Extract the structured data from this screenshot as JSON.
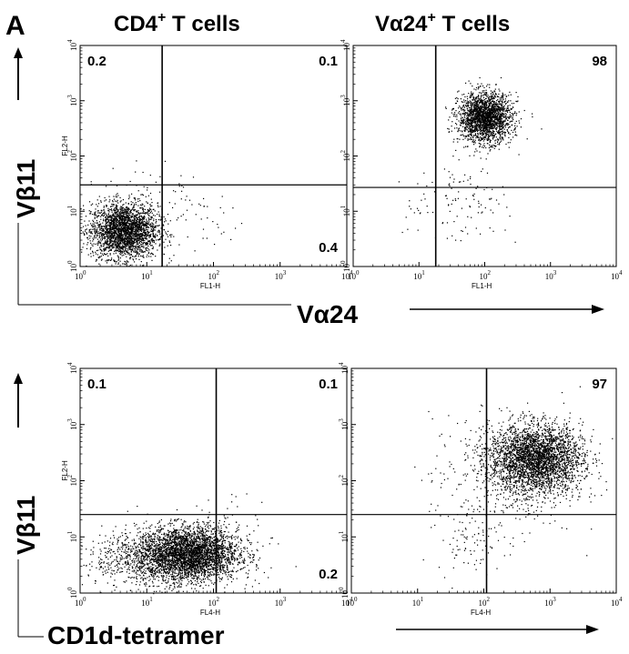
{
  "figure": {
    "panel_letter": "A",
    "col_titles": [
      {
        "prefix": "CD4",
        "sup": "+",
        "suffix": " T cells"
      },
      {
        "prefix": "Vα24",
        "sup": "+",
        "suffix": " T cells"
      }
    ],
    "row_ylabels": [
      "Vβ11",
      "Vβ11"
    ],
    "row_xlabels": [
      "Vα24",
      "CD1d-tetramer"
    ]
  },
  "chart_data": [
    {
      "type": "scatter",
      "row": 0,
      "col": 0,
      "xlabel": "FL1-H",
      "ylabel": "FL2-H",
      "xscale": "log",
      "yscale": "log",
      "xlim": [
        1,
        10000
      ],
      "ylim": [
        1,
        10000
      ],
      "gates": {
        "x": 17,
        "y": 30
      },
      "quadrant_labels": {
        "ul": "0.2",
        "ur": "0.1",
        "lr": "0.4",
        "ll": ""
      },
      "clusters": [
        {
          "center": [
            4.5,
            4.5
          ],
          "spread": [
            0.25,
            0.25
          ],
          "n": 2600,
          "density": "dense"
        },
        {
          "center": [
            10,
            20
          ],
          "spread": [
            0.35,
            0.35
          ],
          "n": 55,
          "density": "sparse"
        },
        {
          "center": [
            60,
            8
          ],
          "spread": [
            0.4,
            0.35
          ],
          "n": 45,
          "density": "sparse"
        }
      ]
    },
    {
      "type": "scatter",
      "row": 0,
      "col": 1,
      "xlabel": "FL1-H",
      "ylabel": "",
      "xscale": "log",
      "yscale": "log",
      "xlim": [
        1,
        10000
      ],
      "ylim": [
        1,
        10000
      ],
      "gates": {
        "x": 18,
        "y": 27
      },
      "quadrant_labels": {
        "ul": "",
        "ur": "98",
        "lr": "",
        "ll": ""
      },
      "clusters": [
        {
          "center": [
            100,
            500
          ],
          "spread": [
            0.2,
            0.22
          ],
          "n": 2200,
          "density": "dense"
        },
        {
          "center": [
            55,
            15
          ],
          "spread": [
            0.3,
            0.35
          ],
          "n": 90,
          "density": "sparse"
        },
        {
          "center": [
            12,
            12
          ],
          "spread": [
            0.3,
            0.3
          ],
          "n": 25,
          "density": "sparse"
        }
      ]
    },
    {
      "type": "scatter",
      "row": 1,
      "col": 0,
      "xlabel": "FL4-H",
      "ylabel": "FL2-H",
      "xscale": "log",
      "yscale": "log",
      "xlim": [
        1,
        10000
      ],
      "ylim": [
        1,
        10000
      ],
      "gates": {
        "x": 110,
        "y": 25
      },
      "quadrant_labels": {
        "ul": "0.1",
        "ur": "0.1",
        "lr": "0.2",
        "ll": ""
      },
      "clusters": [
        {
          "center": [
            40,
            5
          ],
          "spread": [
            0.38,
            0.24
          ],
          "n": 3600,
          "density": "dense"
        },
        {
          "center": [
            8,
            4
          ],
          "spread": [
            0.45,
            0.25
          ],
          "n": 500,
          "density": "sparse"
        },
        {
          "center": [
            180,
            10
          ],
          "spread": [
            0.3,
            0.4
          ],
          "n": 70,
          "density": "sparse"
        }
      ]
    },
    {
      "type": "scatter",
      "row": 1,
      "col": 1,
      "xlabel": "FL4-H",
      "ylabel": "",
      "xscale": "log",
      "yscale": "log",
      "xlim": [
        1,
        10000
      ],
      "ylim": [
        1,
        10000
      ],
      "gates": {
        "x": 110,
        "y": 25
      },
      "quadrant_labels": {
        "ul": "",
        "ur": "97",
        "lr": "",
        "ll": ""
      },
      "clusters": [
        {
          "center": [
            600,
            250
          ],
          "spread": [
            0.35,
            0.3
          ],
          "n": 3200,
          "density": "dense"
        },
        {
          "center": [
            60,
            10
          ],
          "spread": [
            0.25,
            0.3
          ],
          "n": 90,
          "density": "sparse"
        },
        {
          "center": [
            200,
            120
          ],
          "spread": [
            0.55,
            0.55
          ],
          "n": 350,
          "density": "sparse"
        }
      ]
    }
  ],
  "tick_labels": [
    {
      "base": "10",
      "exp": "0"
    },
    {
      "base": "10",
      "exp": "1"
    },
    {
      "base": "10",
      "exp": "2"
    },
    {
      "base": "10",
      "exp": "3"
    },
    {
      "base": "10",
      "exp": "4"
    }
  ]
}
